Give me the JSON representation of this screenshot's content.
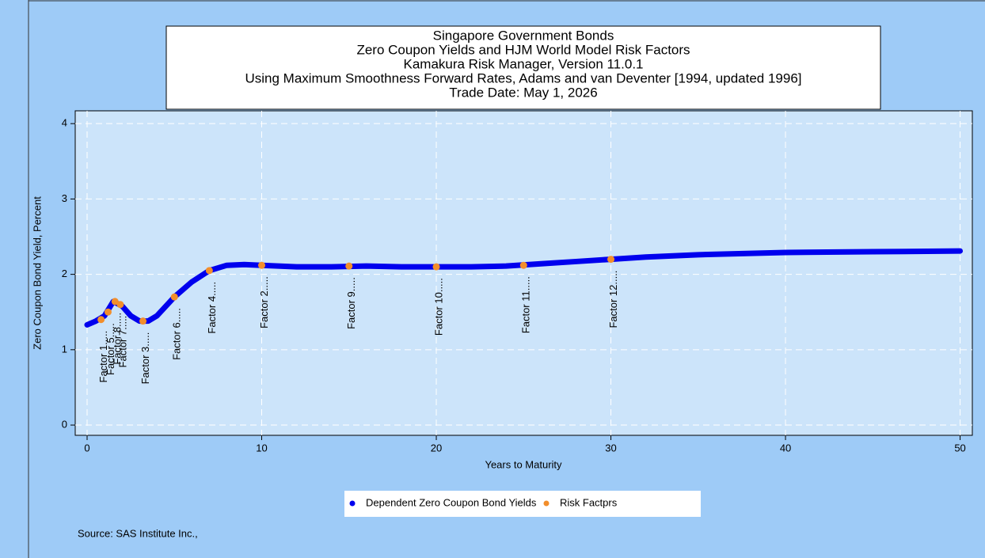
{
  "chart_data": {
    "type": "line",
    "title_lines": [
      "Singapore Government Bonds",
      "Zero Coupon Yields and HJM World Model Risk Factors",
      "Kamakura Risk Manager, Version 11.0.1",
      "Using Maximum Smoothness Forward Rates, Adams and van Deventer [1994, updated 1996]",
      "Trade Date: May 1, 2026"
    ],
    "xlabel": "Years to Maturity",
    "ylabel": "Zero Coupon Bond Yield, Percent",
    "xlim": [
      -0.68,
      50.7
    ],
    "ylim": [
      -0.136,
      4.17
    ],
    "xticks": [
      0,
      10,
      20,
      30,
      40,
      50
    ],
    "yticks": [
      0,
      1,
      2,
      3,
      4
    ],
    "grid": true,
    "series": [
      {
        "name": "Dependent Zero Coupon Bond Yields",
        "color": "#0000ee",
        "mode": "line",
        "x": [
          0,
          0.5,
          1,
          1.5,
          2,
          2.5,
          3,
          3.5,
          4,
          5,
          6,
          7,
          8,
          9,
          10,
          12,
          14,
          16,
          18,
          20,
          22,
          24,
          26,
          28,
          30,
          32,
          35,
          40,
          45,
          50
        ],
        "values": [
          1.33,
          1.38,
          1.45,
          1.64,
          1.58,
          1.45,
          1.38,
          1.38,
          1.45,
          1.7,
          1.9,
          2.05,
          2.12,
          2.13,
          2.12,
          2.1,
          2.1,
          2.11,
          2.1,
          2.1,
          2.1,
          2.11,
          2.14,
          2.17,
          2.2,
          2.23,
          2.26,
          2.29,
          2.3,
          2.31
        ]
      },
      {
        "name": "Risk Factprs",
        "color": "#f28e2b",
        "mode": "markers",
        "x": [
          0.8,
          1.2,
          1.6,
          1.9,
          3.2,
          5,
          7,
          10,
          15,
          20,
          25,
          30
        ],
        "values": [
          1.4,
          1.5,
          1.64,
          1.6,
          1.38,
          1.7,
          2.05,
          2.12,
          2.11,
          2.1,
          2.12,
          2.2
        ],
        "labels": [
          "Factor 1.....",
          "Factor 5.....",
          "Factor 8.....",
          "Factor 7.....",
          "Factor 3.....",
          "Factor 6.....",
          "Factor 4.....",
          "Factor 2.....",
          "Factor 9.....",
          "Factor 10.....",
          "Factor 11.....",
          "Factor 12....."
        ]
      }
    ],
    "source": "Source: SAS Institute Inc.,"
  }
}
